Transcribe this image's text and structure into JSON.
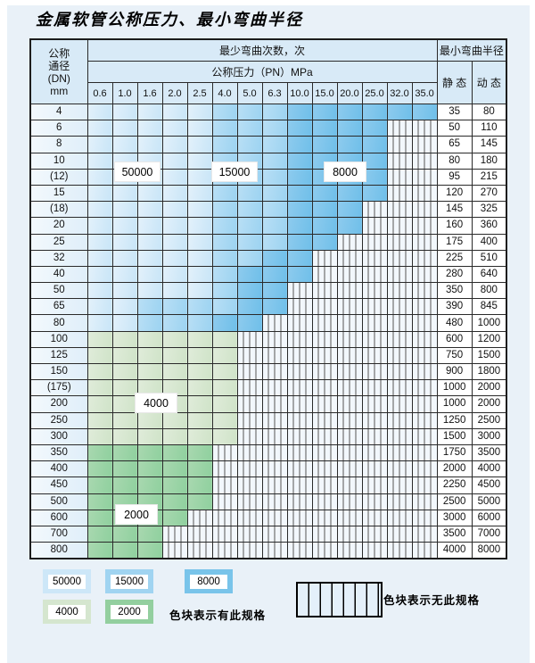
{
  "title": "金属软管公称压力、最小弯曲半径",
  "table": {
    "header": {
      "dn_label_lines": [
        "公称",
        "通径",
        "(DN)",
        "mm"
      ],
      "bend_cycles_label": "最少弯曲次数，次",
      "pressure_label": "公称压力（PN）MPa",
      "radius_label": "最小弯曲半径",
      "static_label": "静 态",
      "dynamic_label": "动 态",
      "pressures": [
        "0.6",
        "1.0",
        "1.6",
        "2.0",
        "2.5",
        "4.0",
        "5.0",
        "6.3",
        "10.0",
        "15.0",
        "20.0",
        "25.0",
        "32.0",
        "35.0"
      ]
    },
    "cell_codes_legend": {
      "L": "50000次-浅蓝",
      "M": "15000次-中蓝",
      "D": "8000次-深蓝",
      "G": "4000次-浅绿",
      "E": "2000次-中绿",
      "H": "无此规格-竖线"
    },
    "rows": [
      {
        "dn": "4",
        "cells": "LLLLLMMMDDDDDD",
        "static": "35",
        "dynamic": "80"
      },
      {
        "dn": "6",
        "cells": "LLLLLMMMDDDDHH",
        "static": "50",
        "dynamic": "110"
      },
      {
        "dn": "8",
        "cells": "LLLLLMMMDDDDHH",
        "static": "65",
        "dynamic": "145"
      },
      {
        "dn": "10",
        "cells": "LLLLLMMMDDDDHH",
        "static": "80",
        "dynamic": "180"
      },
      {
        "dn": "(12)",
        "cells": "LLLLLMMMDDDDHH",
        "static": "95",
        "dynamic": "215"
      },
      {
        "dn": "15",
        "cells": "LLLLLMMMDDDDHH",
        "static": "120",
        "dynamic": "270"
      },
      {
        "dn": "(18)",
        "cells": "LLLLLMMMDDDHHH",
        "static": "145",
        "dynamic": "325"
      },
      {
        "dn": "20",
        "cells": "LLLLLMMMDDDHHH",
        "static": "160",
        "dynamic": "360"
      },
      {
        "dn": "25",
        "cells": "LLLLLMMMDDHHHH",
        "static": "175",
        "dynamic": "400"
      },
      {
        "dn": "32",
        "cells": "LLLLLMMDDHHHHH",
        "static": "225",
        "dynamic": "510"
      },
      {
        "dn": "40",
        "cells": "LLLLLMDDDHHHHH",
        "static": "280",
        "dynamic": "640"
      },
      {
        "dn": "50",
        "cells": "LLLLLMDDHHHHHH",
        "static": "350",
        "dynamic": "800"
      },
      {
        "dn": "65",
        "cells": "LLMMMMDDHHHHHH",
        "static": "390",
        "dynamic": "845"
      },
      {
        "dn": "80",
        "cells": "LLMMMDDHHHHHHH",
        "static": "480",
        "dynamic": "1000"
      },
      {
        "dn": "100",
        "cells": "GGGGGGHHHHHHHH",
        "static": "600",
        "dynamic": "1200"
      },
      {
        "dn": "125",
        "cells": "GGGGGGHHHHHHHH",
        "static": "750",
        "dynamic": "1500"
      },
      {
        "dn": "150",
        "cells": "GGGGGGHHHHHHHH",
        "static": "900",
        "dynamic": "1800"
      },
      {
        "dn": "(175)",
        "cells": "GGGGGGHHHHHHHH",
        "static": "1000",
        "dynamic": "2000"
      },
      {
        "dn": "200",
        "cells": "GGGGGGHHHHHHHH",
        "static": "1000",
        "dynamic": "2000"
      },
      {
        "dn": "250",
        "cells": "GGGGGGHHHHHHHH",
        "static": "1250",
        "dynamic": "2500"
      },
      {
        "dn": "300",
        "cells": "GGGGGGHHHHHHHH",
        "static": "1500",
        "dynamic": "3000"
      },
      {
        "dn": "350",
        "cells": "EEEEEHHHHHHHHH",
        "static": "1750",
        "dynamic": "3500"
      },
      {
        "dn": "400",
        "cells": "EEEEEHHHHHHHHH",
        "static": "2000",
        "dynamic": "4000"
      },
      {
        "dn": "450",
        "cells": "EEEEEHHHHHHHHH",
        "static": "2250",
        "dynamic": "4500"
      },
      {
        "dn": "500",
        "cells": "EEEEEHHHHHHHHH",
        "static": "2500",
        "dynamic": "5000"
      },
      {
        "dn": "600",
        "cells": "EEEEHHHHHHHHHH",
        "static": "3000",
        "dynamic": "6000"
      },
      {
        "dn": "700",
        "cells": "EEEHHHHHHHHHHH",
        "static": "3500",
        "dynamic": "7000"
      },
      {
        "dn": "800",
        "cells": "EEEHHHHHHHHHHH",
        "static": "4000",
        "dynamic": "8000"
      }
    ]
  },
  "region_labels": {
    "l50000": "50000",
    "l15000": "15000",
    "l8000": "8000",
    "l4000": "4000",
    "l2000": "2000"
  },
  "legend": {
    "items": [
      {
        "value": "50000",
        "color": "#cde7f8"
      },
      {
        "value": "15000",
        "color": "#a0d4f1"
      },
      {
        "value": "8000",
        "color": "#79c4ea"
      },
      {
        "value": "4000",
        "color": "#d5e6cf"
      },
      {
        "value": "2000",
        "color": "#93cf9f"
      }
    ],
    "has_spec_note": "色块表示有此规格",
    "no_spec_note": "色块表示无此规格"
  }
}
